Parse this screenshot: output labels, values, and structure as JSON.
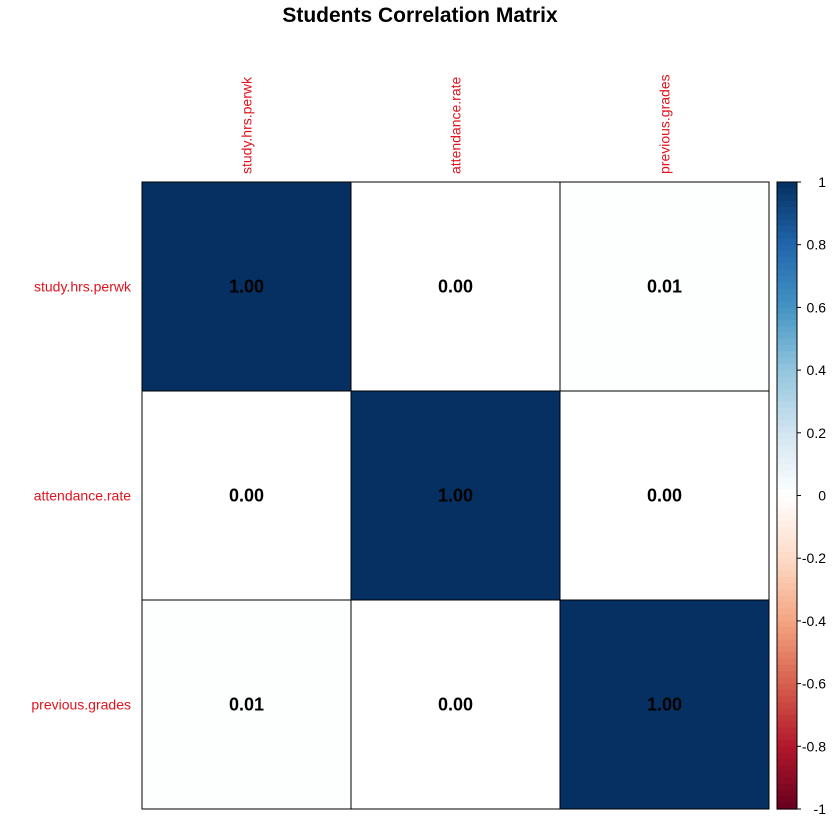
{
  "chart_data": {
    "type": "heatmap",
    "title": "Students Correlation Matrix",
    "row_labels": [
      "study.hrs.perwk",
      "attendance.rate",
      "previous.grades"
    ],
    "col_labels": [
      "study.hrs.perwk",
      "attendance.rate",
      "previous.grades"
    ],
    "values": [
      [
        1.0,
        0.0,
        0.01
      ],
      [
        0.0,
        1.0,
        0.0
      ],
      [
        0.01,
        0.0,
        1.0
      ]
    ],
    "value_labels": [
      [
        "1.00",
        "0.00",
        "0.01"
      ],
      [
        "0.00",
        "1.00",
        "0.00"
      ],
      [
        "0.01",
        "0.00",
        "1.00"
      ]
    ],
    "color_scale": {
      "range": [
        -1,
        1
      ],
      "ticks": [
        "1",
        "0.8",
        "0.6",
        "0.4",
        "0.2",
        "0",
        "-0.2",
        "-0.4",
        "-0.6",
        "-0.8",
        "-1"
      ],
      "tick_values": [
        1,
        0.8,
        0.6,
        0.4,
        0.2,
        0,
        -0.2,
        -0.4,
        -0.6,
        -0.8,
        -1
      ],
      "palette": [
        "#67001F",
        "#B2182B",
        "#D6604D",
        "#F4A582",
        "#FDDBC7",
        "#FFFFFF",
        "#D1E5F0",
        "#92C5DE",
        "#4393C3",
        "#2166AC",
        "#053061"
      ]
    },
    "label_color": "#E0141E",
    "legend_position": "right"
  }
}
